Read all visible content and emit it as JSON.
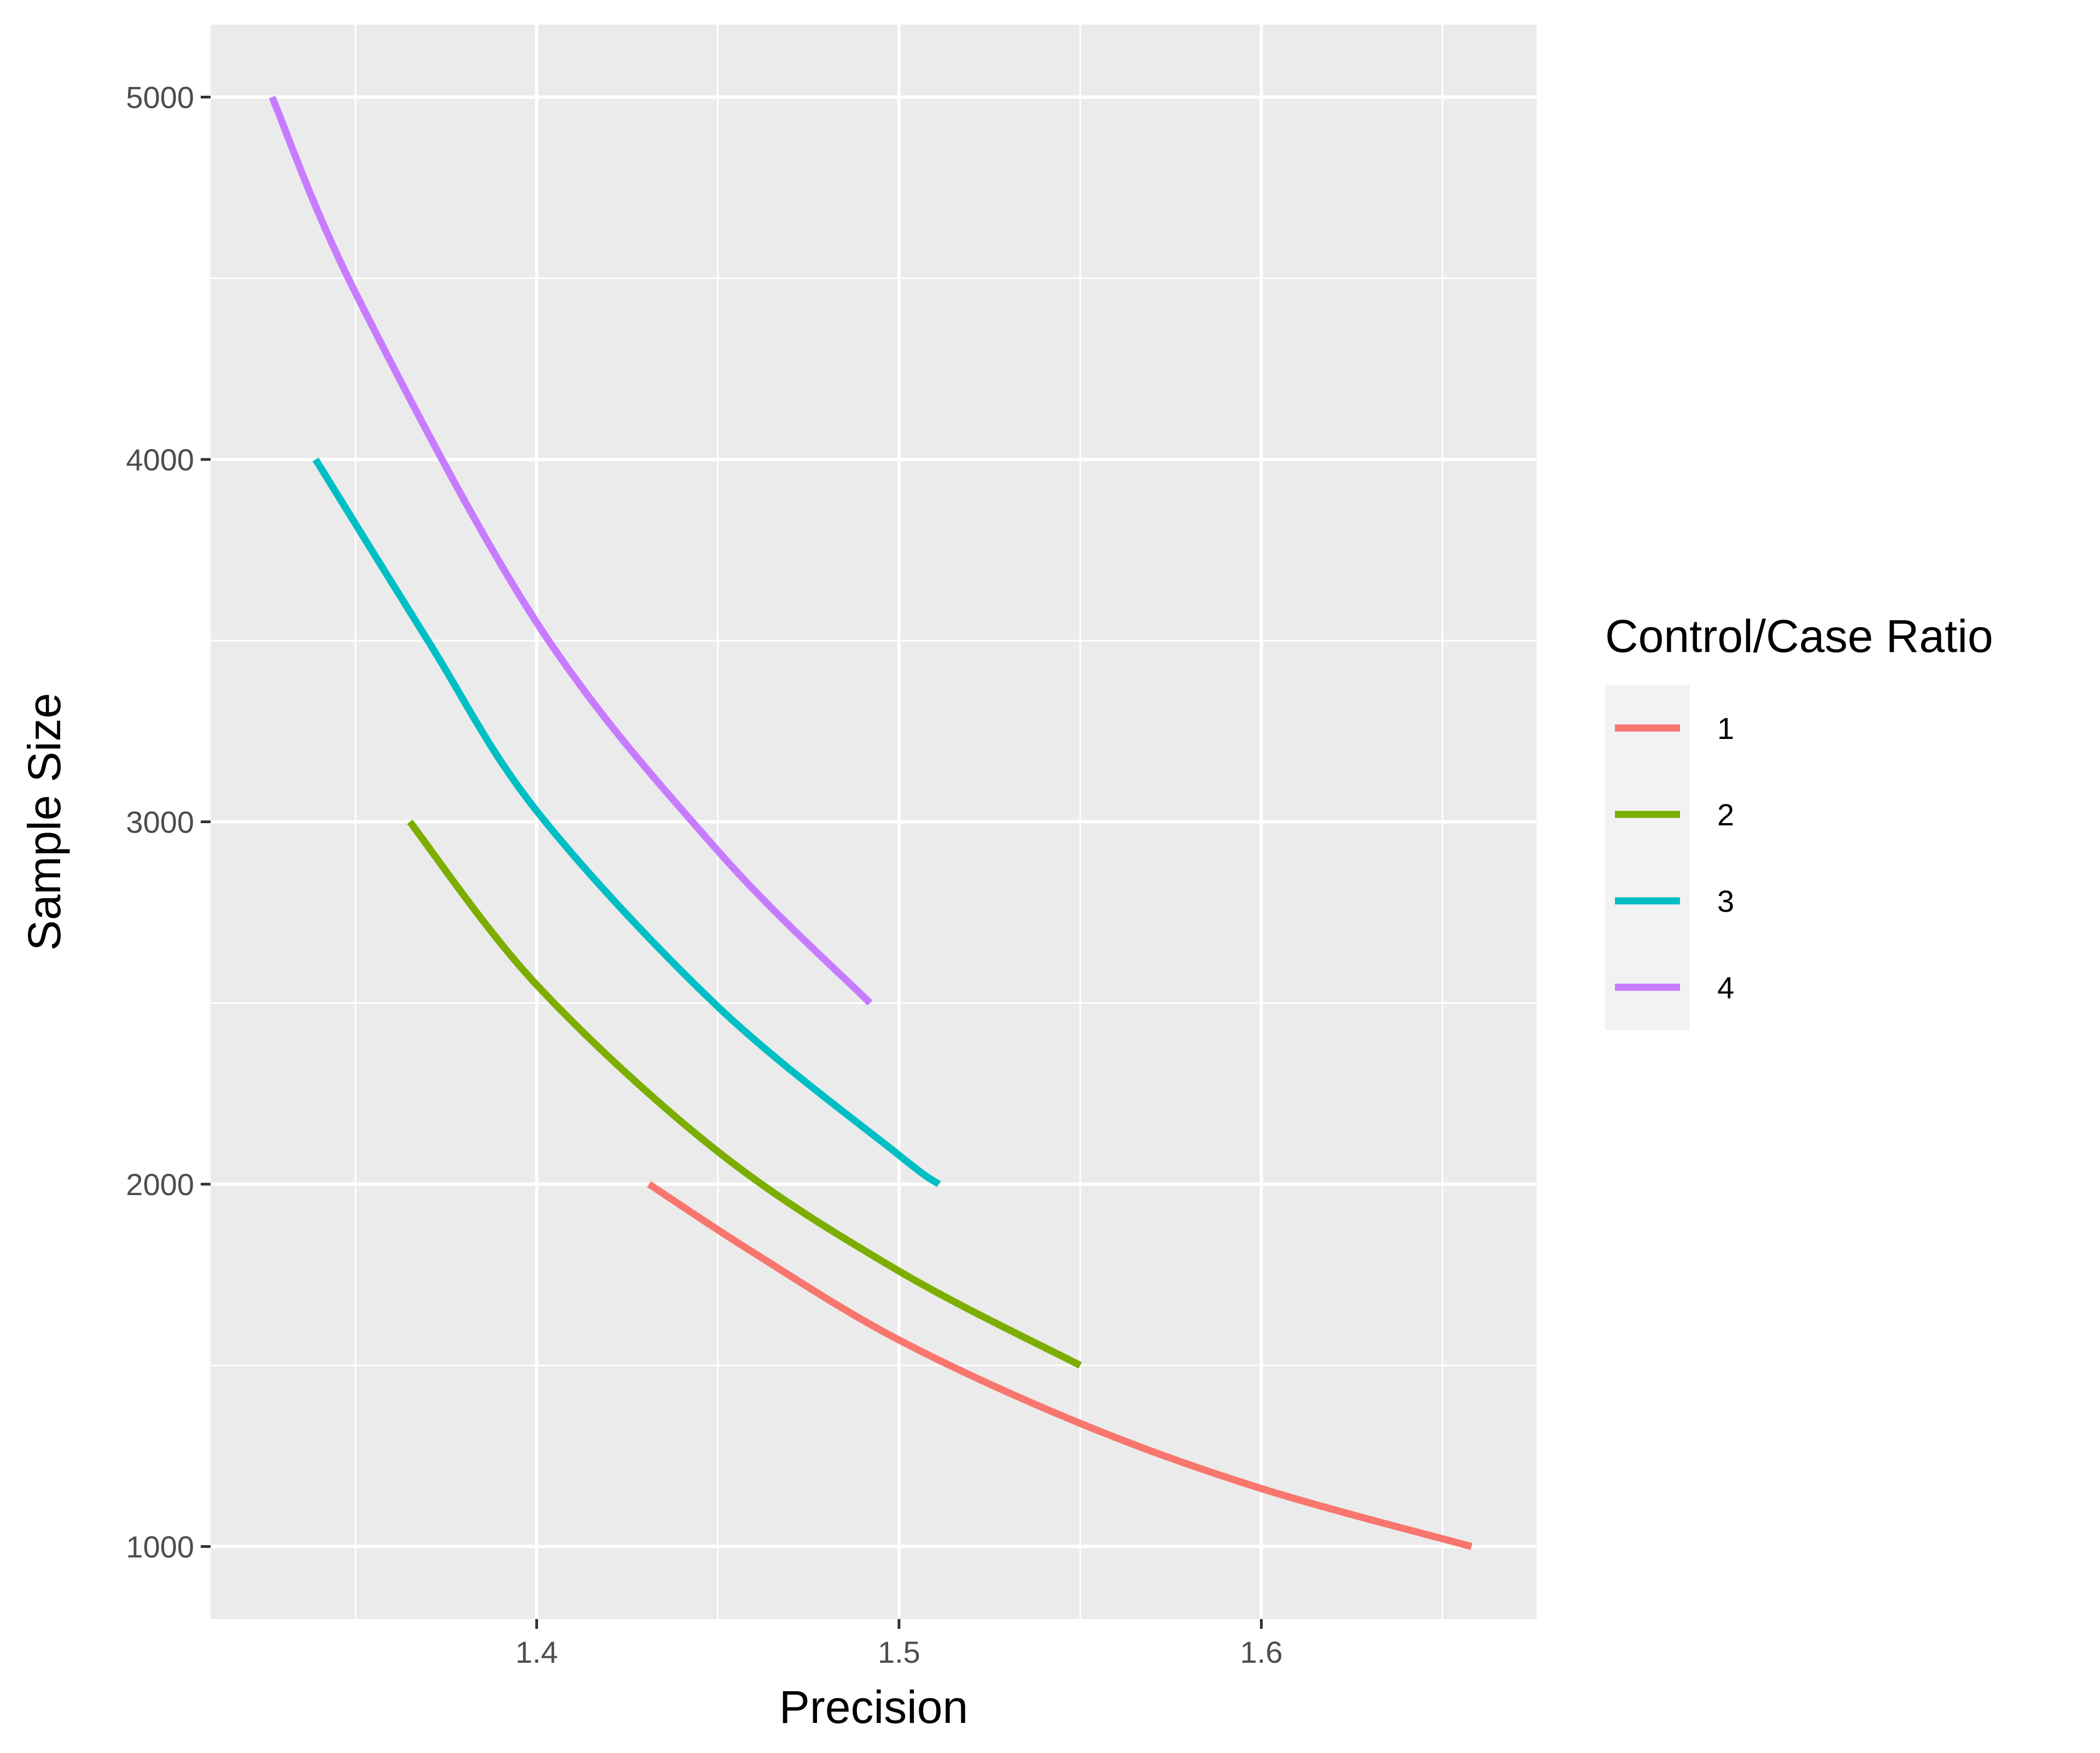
{
  "chart_data": {
    "type": "line",
    "xlabel": "Precision",
    "ylabel": "Sample Size",
    "xlim": [
      1.31,
      1.676
    ],
    "ylim": [
      800,
      5200
    ],
    "x_ticks": [
      1.4,
      1.5,
      1.6
    ],
    "x_tick_labels": [
      "1.4",
      "1.5",
      "1.6"
    ],
    "x_minor_ticks": [
      1.35,
      1.45,
      1.55,
      1.65
    ],
    "y_ticks": [
      1000,
      2000,
      3000,
      4000,
      5000
    ],
    "y_tick_labels": [
      "1000",
      "2000",
      "3000",
      "4000",
      "5000"
    ],
    "y_minor_ticks": [
      1500,
      2500,
      3500,
      4500
    ],
    "grid": true,
    "legend": {
      "title": "Control/Case Ratio",
      "position": "right"
    },
    "series": [
      {
        "name": "1",
        "color": "#F8766D",
        "points": [
          {
            "x": 1.431,
            "y": 2000
          },
          {
            "x": 1.46,
            "y": 1810
          },
          {
            "x": 1.5,
            "y": 1570
          },
          {
            "x": 1.55,
            "y": 1340
          },
          {
            "x": 1.6,
            "y": 1160
          },
          {
            "x": 1.658,
            "y": 1000
          }
        ]
      },
      {
        "name": "2",
        "color": "#7CAE00",
        "points": [
          {
            "x": 1.365,
            "y": 3000
          },
          {
            "x": 1.4,
            "y": 2550
          },
          {
            "x": 1.45,
            "y": 2090
          },
          {
            "x": 1.5,
            "y": 1760
          },
          {
            "x": 1.55,
            "y": 1500
          }
        ]
      },
      {
        "name": "3",
        "color": "#00BFC4",
        "points": [
          {
            "x": 1.339,
            "y": 4000
          },
          {
            "x": 1.37,
            "y": 3500
          },
          {
            "x": 1.4,
            "y": 3030
          },
          {
            "x": 1.45,
            "y": 2490
          },
          {
            "x": 1.5,
            "y": 2080
          },
          {
            "x": 1.511,
            "y": 2000
          }
        ]
      },
      {
        "name": "4",
        "color": "#C77CFF",
        "points": [
          {
            "x": 1.327,
            "y": 5000
          },
          {
            "x": 1.35,
            "y": 4460
          },
          {
            "x": 1.4,
            "y": 3550
          },
          {
            "x": 1.45,
            "y": 2920
          },
          {
            "x": 1.492,
            "y": 2500
          }
        ]
      }
    ]
  }
}
